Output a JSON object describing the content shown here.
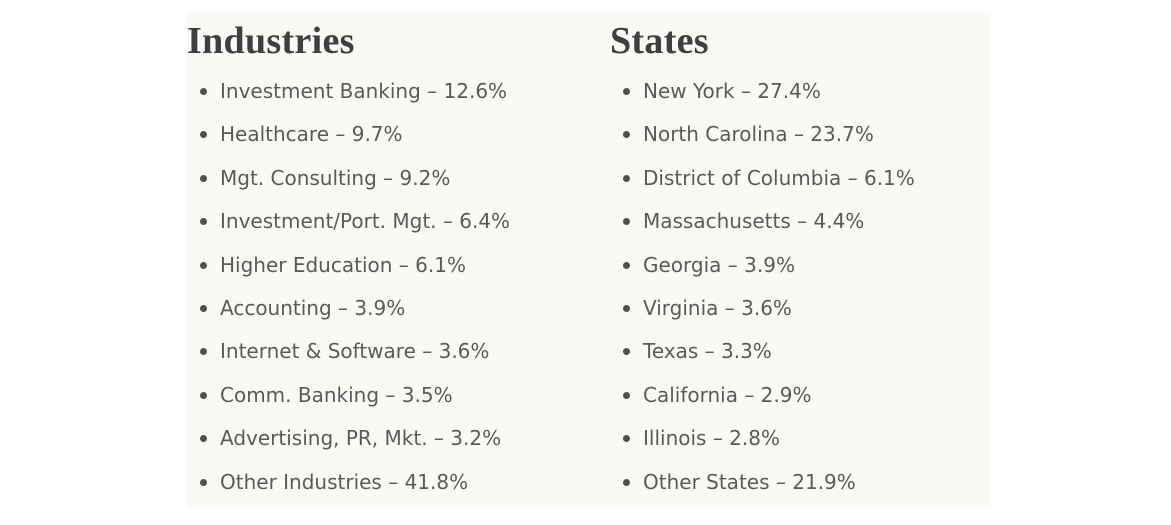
{
  "industries": {
    "heading": "Industries",
    "items": [
      "Investment Banking – 12.6%",
      "Healthcare – 9.7%",
      "Mgt. Consulting – 9.2%",
      "Investment/Port. Mgt. – 6.4%",
      "Higher Education – 6.1%",
      "Accounting – 3.9%",
      "Internet & Software – 3.6%",
      "Comm. Banking – 3.5%",
      "Advertising, PR, Mkt. – 3.2%",
      "Other Industries – 41.8%"
    ]
  },
  "states": {
    "heading": "States",
    "items": [
      "New York – 27.4%",
      "North Carolina – 23.7%",
      "District of Columbia – 6.1%",
      "Massachusetts – 4.4%",
      "Georgia – 3.9%",
      "Virginia – 3.6%",
      "Texas – 3.3%",
      "California – 2.9%",
      "Illinois – 2.8%",
      "Other States – 21.9%"
    ]
  },
  "colors": {
    "panel_background": "#fbf9f5",
    "heading_text": "#3f3f3f",
    "item_text": "#5a5a5a",
    "bullet": "#4f4f4f"
  }
}
